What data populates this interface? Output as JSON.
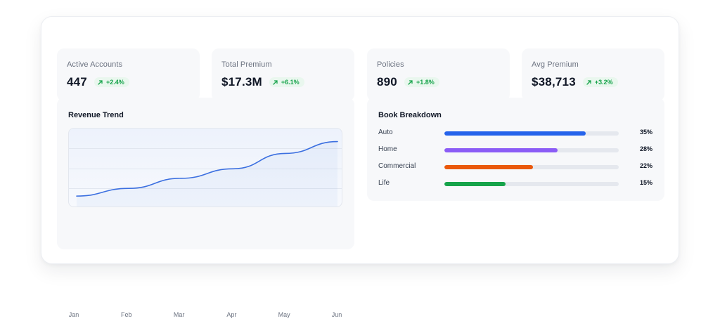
{
  "stats": [
    {
      "label": "Active Accounts",
      "value": "447",
      "change": "+2.4%"
    },
    {
      "label": "Total Premium",
      "value": "$17.3M",
      "change": "+6.1%"
    },
    {
      "label": "Policies",
      "value": "890",
      "change": "+1.8%"
    },
    {
      "label": "Avg Premium",
      "value": "$38,713",
      "change": "+3.2%"
    }
  ],
  "revenue": {
    "title": "Revenue Trend"
  },
  "breakdown": {
    "title": "Book Breakdown",
    "items": [
      {
        "label": "Auto",
        "percent": "35%",
        "fill": 0.81,
        "color": "#2563eb"
      },
      {
        "label": "Home",
        "percent": "28%",
        "fill": 0.65,
        "color": "#8b5cf6"
      },
      {
        "label": "Commercial",
        "percent": "22%",
        "fill": 0.51,
        "color": "#ea580c"
      },
      {
        "label": "Life",
        "percent": "15%",
        "fill": 0.35,
        "color": "#16a34a"
      }
    ]
  },
  "chart_data": {
    "type": "line",
    "title": "Revenue Trend",
    "categories": [
      "Jan",
      "Feb",
      "Mar",
      "Apr",
      "May",
      "Jun"
    ],
    "series": [
      {
        "values": [
          1.0,
          1.65,
          2.5,
          3.3,
          4.6,
          5.6
        ]
      }
    ],
    "ylim": [
      0,
      6.7
    ],
    "grid": true,
    "line_color": "#3b6fe0",
    "legend": "none"
  }
}
